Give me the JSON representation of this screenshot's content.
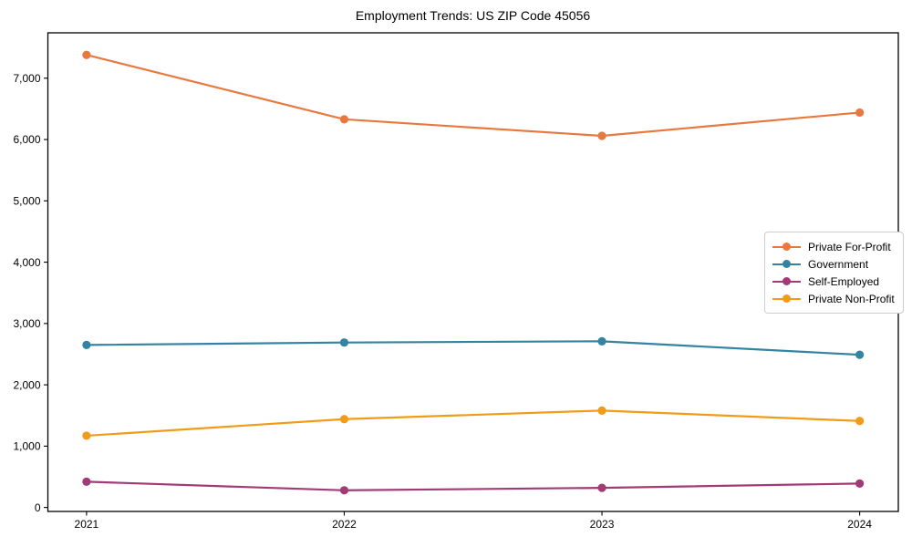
{
  "chart_data": {
    "type": "line",
    "title": "Employment Trends: US ZIP Code 45056",
    "x": [
      2021,
      2022,
      2023,
      2024
    ],
    "x_tick_labels": [
      "2021",
      "2022",
      "2023",
      "2024"
    ],
    "series": [
      {
        "name": "Private For-Profit",
        "color": "#e8793e",
        "values": [
          7380,
          6330,
          6060,
          6440
        ]
      },
      {
        "name": "Government",
        "color": "#3383a3",
        "values": [
          2650,
          2690,
          2710,
          2490
        ]
      },
      {
        "name": "Self-Employed",
        "color": "#a23a77",
        "values": [
          420,
          280,
          320,
          390
        ]
      },
      {
        "name": "Private Non-Profit",
        "color": "#f09c18",
        "values": [
          1170,
          1440,
          1580,
          1410
        ]
      }
    ],
    "xlabel": "",
    "ylabel": "",
    "y_ticks": [
      0,
      1000,
      2000,
      3000,
      4000,
      5000,
      6000,
      7000
    ],
    "y_tick_labels": [
      "0",
      "1,000",
      "2,000",
      "3,000",
      "4,000",
      "5,000",
      "6,000",
      "7,000"
    ],
    "ylim": [
      -65,
      7740
    ],
    "grid": false,
    "legend_position": "right-center",
    "marker": "circle",
    "axis_color": "#000000",
    "text_color": "#000000",
    "background_color": "#ffffff"
  }
}
